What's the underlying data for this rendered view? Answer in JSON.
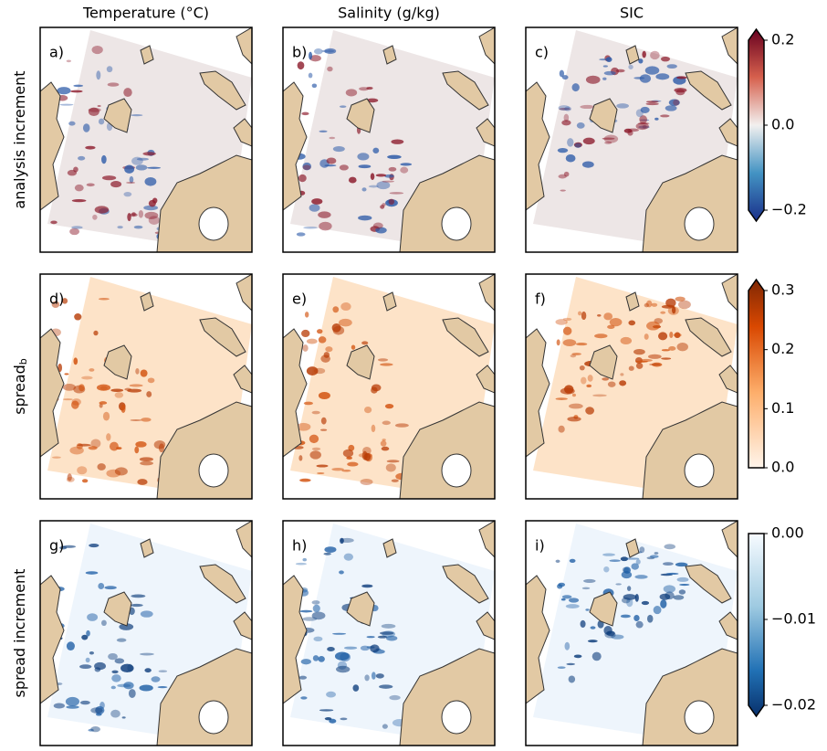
{
  "columns": [
    "Temperature ($^\\circ$C)",
    "Salinity (g/kg)",
    "SIC"
  ],
  "column_titles": [
    "Temperature (°C)",
    "Salinity (g/kg)",
    "SIC"
  ],
  "rows": [
    {
      "text": "analysis increment"
    },
    {
      "text": "spread",
      "subscript": "b"
    },
    {
      "text": "spread increment"
    }
  ],
  "panels": [
    [
      "a)",
      "b)",
      "c)"
    ],
    [
      "d)",
      "e)",
      "f)"
    ],
    [
      "g)",
      "h)",
      "i)"
    ]
  ],
  "colorbars": [
    {
      "lim": [
        -0.2,
        0.2
      ],
      "extend": "both",
      "ticks": [
        {
          "value": -0.2,
          "label": "−0.2"
        },
        {
          "value": 0,
          "label": "0.0"
        },
        0.2
      ]
    },
    {
      "lim": [
        0,
        0.3
      ],
      "extend": "max",
      "ticks": [
        {
          "value": 0,
          "label": "0.0"
        },
        0.1,
        0.2,
        0.3
      ]
    },
    {
      "lim": [
        -0.02,
        0
      ],
      "extend": "min",
      "ticks": [
        {
          "value": -0.02,
          "label": "−0.02"
        },
        {
          "value": -0.01,
          "label": "−0.01"
        },
        {
          "value": 0,
          "label": "0.00"
        }
      ]
    }
  ]
}
